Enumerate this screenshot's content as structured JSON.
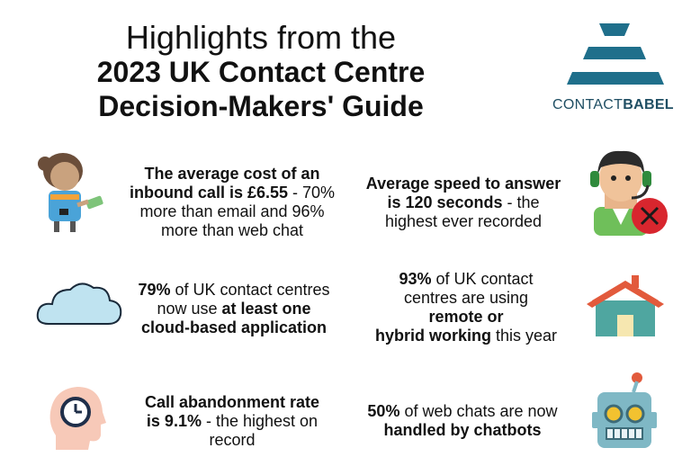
{
  "header": {
    "title_line1": "Highlights from the",
    "title_line2": "2023 UK Contact Centre",
    "title_line3": "Decision-Makers' Guide"
  },
  "logo": {
    "text_light": "CONTACT",
    "text_bold": "BABEL",
    "color": "#1f6f8b"
  },
  "stats": {
    "cost": {
      "bold1": "The average cost of an",
      "bold2": "inbound call is £6.55",
      "rest1": " - 70%",
      "rest2": "more than email and 96%",
      "rest3": "more than web chat",
      "icon": "woman-holding-money-icon"
    },
    "speed": {
      "bold1": "Average speed to answer",
      "bold2": "is 120 seconds",
      "rest1": " - the",
      "rest2": "highest ever recorded",
      "icon": "call-agent-headset-icon"
    },
    "cloud": {
      "bold1": "79%",
      "rest1": " of UK contact centres",
      "rest2": "now use ",
      "bold2": "at least one",
      "bold3": "cloud-based application",
      "icon": "cloud-icon"
    },
    "remote": {
      "bold1": "93%",
      "rest1": " of UK contact",
      "rest2": "centres are using",
      "bold2": "remote or",
      "bold3": "hybrid working",
      "rest3": " this year",
      "icon": "house-icon"
    },
    "abandon": {
      "bold1": "Call abandonment rate",
      "bold2": "is 9.1%",
      "rest1": " - the highest on",
      "rest2": "record",
      "icon": "head-clock-icon"
    },
    "chatbots": {
      "bold1": "50%",
      "rest1": " of web chats are now",
      "bold2": "handled by chatbots",
      "icon": "robot-icon"
    }
  },
  "colors": {
    "teal": "#1f6f8b",
    "cloud_fill": "#bfe3f0",
    "house_roof": "#e25a3c",
    "house_wall": "#4fa6a0",
    "robot": "#7fb8c5",
    "cancel_red": "#d8262e"
  }
}
